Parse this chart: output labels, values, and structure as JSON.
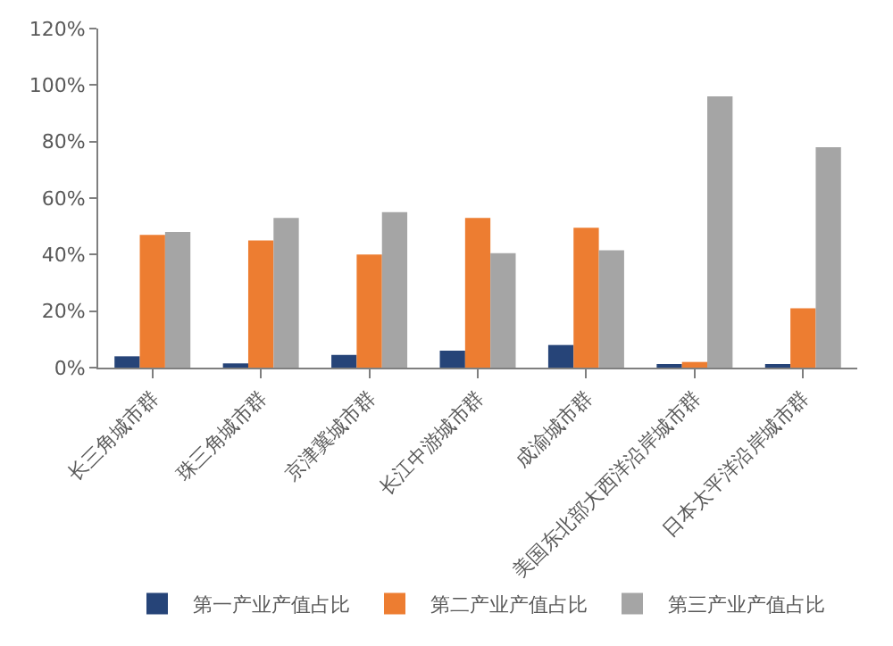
{
  "chart_data": {
    "type": "bar",
    "categories": [
      "长三角城市群",
      "珠三角城市群",
      "京津冀城市群",
      "长江中游城市群",
      "成渝城市群",
      "美国东北部大西洋沿岸城市群",
      "日本太平洋沿岸城市群"
    ],
    "series": [
      {
        "name": "第一产业产值占比",
        "color": "#264478",
        "values": [
          4,
          1.5,
          4.5,
          6,
          8,
          1,
          1
        ]
      },
      {
        "name": "第二产业产值占比",
        "color": "#ed7d31",
        "values": [
          47,
          45,
          40,
          53,
          49.5,
          2,
          21
        ]
      },
      {
        "name": "第三产业产值占比",
        "color": "#a5a5a5",
        "values": [
          48,
          53,
          55,
          40.5,
          41.5,
          96,
          78
        ]
      }
    ],
    "ylim": [
      0,
      120
    ],
    "yticks": [
      {
        "value": 0,
        "label": "0%"
      },
      {
        "value": 20,
        "label": "20%"
      },
      {
        "value": 40,
        "label": "40%"
      },
      {
        "value": 60,
        "label": "60%"
      },
      {
        "value": 80,
        "label": "80%"
      },
      {
        "value": 100,
        "label": "100%"
      },
      {
        "value": 120,
        "label": "120%"
      }
    ],
    "legend": "bottom"
  }
}
